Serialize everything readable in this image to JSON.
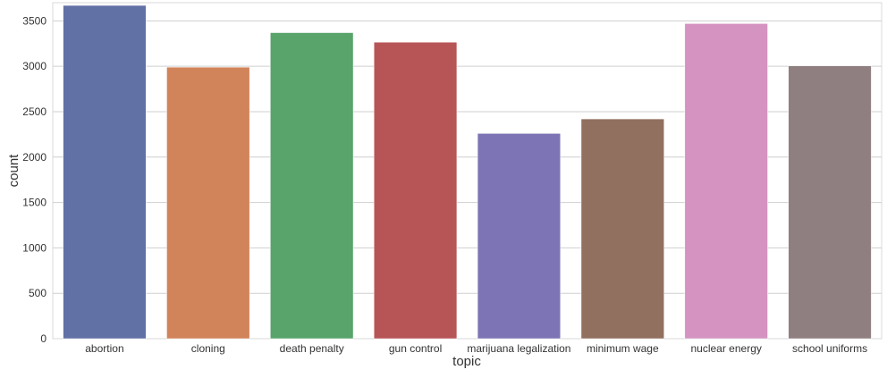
{
  "chart_data": {
    "type": "bar",
    "title": "",
    "xlabel": "topic",
    "ylabel": "count",
    "categories": [
      "abortion",
      "cloning",
      "death penalty",
      "gun control",
      "marijuana legalization",
      "minimum wage",
      "nuclear energy",
      "school uniforms"
    ],
    "values": [
      3670,
      2990,
      3370,
      3265,
      2260,
      2420,
      3470,
      3005
    ],
    "colors": [
      "#6170a5",
      "#d1845a",
      "#58a46b",
      "#b75456",
      "#7d74b5",
      "#91705f",
      "#d493c0",
      "#8f7f80"
    ],
    "ylim": [
      0,
      3700
    ],
    "yticks": [
      0,
      500,
      1000,
      1500,
      2000,
      2500,
      3000,
      3500
    ],
    "grid": true,
    "gridcolor": "#cfcfcf"
  }
}
